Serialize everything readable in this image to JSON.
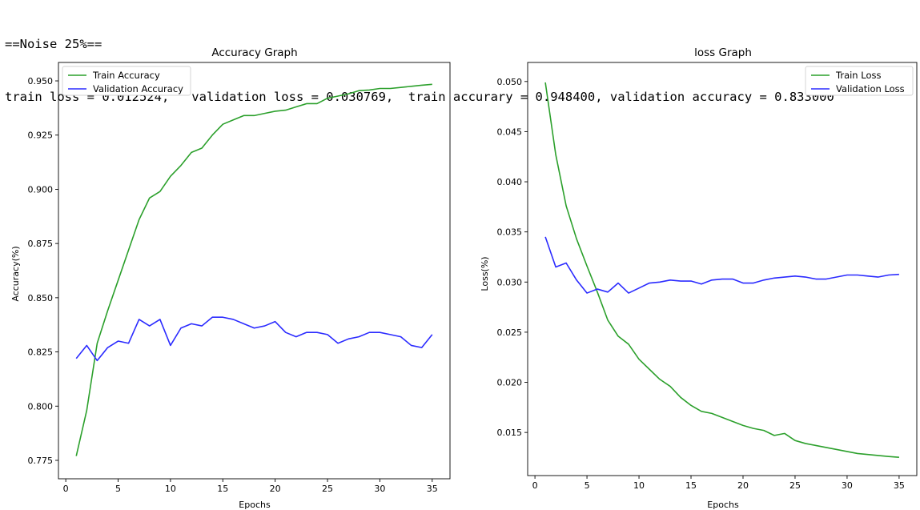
{
  "console": {
    "header": "==Noise 25%==",
    "summary": "train loss = 0.012524,   validation loss = 0.030769,  train accurary = 0.948400, validation accuracy = 0.833000"
  },
  "chart_data": [
    {
      "type": "line",
      "title": "Accuracy Graph",
      "xlabel": "Epochs",
      "ylabel": "Accuracy(%)",
      "xlim": [
        -0.7,
        36.7
      ],
      "ylim": [
        0.7665,
        0.9585
      ],
      "xticks": [
        0,
        5,
        10,
        15,
        20,
        25,
        30,
        35
      ],
      "yticks": [
        0.775,
        0.8,
        0.825,
        0.85,
        0.875,
        0.9,
        0.925,
        0.95
      ],
      "ytick_labels": [
        "0.775",
        "0.800",
        "0.825",
        "0.850",
        "0.875",
        "0.900",
        "0.925",
        "0.950"
      ],
      "grid": false,
      "legend": "top-left",
      "x": [
        1,
        2,
        3,
        4,
        5,
        6,
        7,
        8,
        9,
        10,
        11,
        12,
        13,
        14,
        15,
        16,
        17,
        18,
        19,
        20,
        21,
        22,
        23,
        24,
        25,
        26,
        27,
        28,
        29,
        30,
        31,
        32,
        33,
        34,
        35
      ],
      "series": [
        {
          "name": "Train Accuracy",
          "color": "#2ca02c",
          "values": [
            0.777,
            0.798,
            0.829,
            0.844,
            0.858,
            0.872,
            0.886,
            0.896,
            0.899,
            0.906,
            0.911,
            0.917,
            0.919,
            0.925,
            0.93,
            0.932,
            0.934,
            0.934,
            0.935,
            0.936,
            0.9365,
            0.938,
            0.9395,
            0.9395,
            0.942,
            0.943,
            0.944,
            0.9455,
            0.9458,
            0.9465,
            0.9465,
            0.947,
            0.9475,
            0.948,
            0.9484
          ]
        },
        {
          "name": "Validation Accuracy",
          "color": "#2b2bff",
          "values": [
            0.822,
            0.828,
            0.821,
            0.827,
            0.83,
            0.829,
            0.84,
            0.837,
            0.84,
            0.828,
            0.836,
            0.838,
            0.837,
            0.841,
            0.841,
            0.84,
            0.838,
            0.836,
            0.837,
            0.839,
            0.834,
            0.832,
            0.834,
            0.834,
            0.833,
            0.829,
            0.831,
            0.832,
            0.834,
            0.834,
            0.833,
            0.832,
            0.828,
            0.827,
            0.833
          ]
        }
      ]
    },
    {
      "type": "line",
      "title": "loss Graph",
      "xlabel": "Epochs",
      "ylabel": "Loss(%)",
      "xlim": [
        -0.7,
        36.7
      ],
      "ylim": [
        0.0107,
        0.0519
      ],
      "xticks": [
        0,
        5,
        10,
        15,
        20,
        25,
        30,
        35
      ],
      "yticks": [
        0.015,
        0.02,
        0.025,
        0.03,
        0.035,
        0.04,
        0.045,
        0.05
      ],
      "ytick_labels": [
        "0.015",
        "0.020",
        "0.025",
        "0.030",
        "0.035",
        "0.040",
        "0.045",
        "0.050"
      ],
      "grid": false,
      "legend": "top-right",
      "x": [
        1,
        2,
        3,
        4,
        5,
        6,
        7,
        8,
        9,
        10,
        11,
        12,
        13,
        14,
        15,
        16,
        17,
        18,
        19,
        20,
        21,
        22,
        23,
        24,
        25,
        26,
        27,
        28,
        29,
        30,
        31,
        32,
        33,
        34,
        35
      ],
      "series": [
        {
          "name": "Train Loss",
          "color": "#2ca02c",
          "values": [
            0.0499,
            0.0427,
            0.0376,
            0.0343,
            0.0316,
            0.029,
            0.0262,
            0.0246,
            0.0238,
            0.0223,
            0.0213,
            0.0203,
            0.0196,
            0.0185,
            0.0177,
            0.0171,
            0.0169,
            0.0165,
            0.0161,
            0.0157,
            0.0154,
            0.0152,
            0.0147,
            0.0149,
            0.0142,
            0.0139,
            0.0137,
            0.0135,
            0.0133,
            0.0131,
            0.0129,
            0.0128,
            0.0127,
            0.0126,
            0.01252
          ]
        },
        {
          "name": "Validation Loss",
          "color": "#2b2bff",
          "values": [
            0.0345,
            0.0315,
            0.0319,
            0.0302,
            0.0289,
            0.0293,
            0.029,
            0.0299,
            0.0289,
            0.0294,
            0.0299,
            0.03,
            0.0302,
            0.0301,
            0.0301,
            0.0298,
            0.0302,
            0.0303,
            0.0303,
            0.0299,
            0.0299,
            0.0302,
            0.0304,
            0.0305,
            0.0306,
            0.0305,
            0.0303,
            0.0303,
            0.0305,
            0.0307,
            0.0307,
            0.0306,
            0.0305,
            0.0307,
            0.03077
          ]
        }
      ]
    }
  ]
}
